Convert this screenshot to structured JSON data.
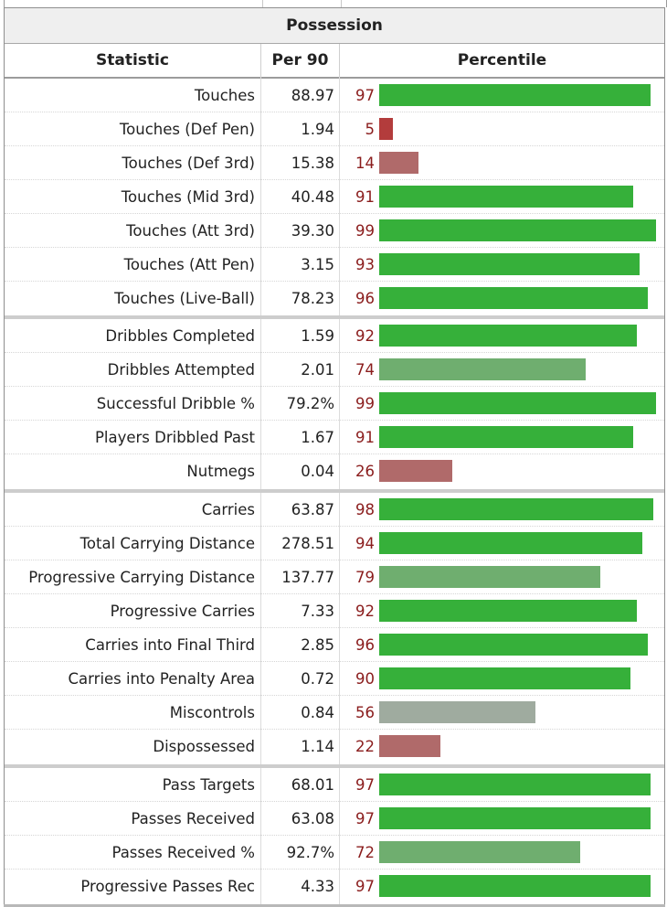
{
  "table": {
    "title": "Possession",
    "headers": {
      "statistic": "Statistic",
      "per90": "Per 90",
      "percentile": "Percentile"
    },
    "colors": {
      "high": "#36b03a",
      "mid_high": "#6fae6f",
      "neutral": "#9fab9f",
      "low": "#b06a6a",
      "very_low": "#b33c3c",
      "percentile_text": "#8a1c1c"
    },
    "groups": [
      {
        "rows": [
          {
            "statistic": "Touches",
            "per90": "88.97",
            "percentile": 97
          },
          {
            "statistic": "Touches (Def Pen)",
            "per90": "1.94",
            "percentile": 5
          },
          {
            "statistic": "Touches (Def 3rd)",
            "per90": "15.38",
            "percentile": 14
          },
          {
            "statistic": "Touches (Mid 3rd)",
            "per90": "40.48",
            "percentile": 91
          },
          {
            "statistic": "Touches (Att 3rd)",
            "per90": "39.30",
            "percentile": 99
          },
          {
            "statistic": "Touches (Att Pen)",
            "per90": "3.15",
            "percentile": 93
          },
          {
            "statistic": "Touches (Live-Ball)",
            "per90": "78.23",
            "percentile": 96
          }
        ]
      },
      {
        "rows": [
          {
            "statistic": "Dribbles Completed",
            "per90": "1.59",
            "percentile": 92
          },
          {
            "statistic": "Dribbles Attempted",
            "per90": "2.01",
            "percentile": 74
          },
          {
            "statistic": "Successful Dribble %",
            "per90": "79.2%",
            "percentile": 99
          },
          {
            "statistic": "Players Dribbled Past",
            "per90": "1.67",
            "percentile": 91
          },
          {
            "statistic": "Nutmegs",
            "per90": "0.04",
            "percentile": 26
          }
        ]
      },
      {
        "rows": [
          {
            "statistic": "Carries",
            "per90": "63.87",
            "percentile": 98
          },
          {
            "statistic": "Total Carrying Distance",
            "per90": "278.51",
            "percentile": 94
          },
          {
            "statistic": "Progressive Carrying Distance",
            "per90": "137.77",
            "percentile": 79
          },
          {
            "statistic": "Progressive Carries",
            "per90": "7.33",
            "percentile": 92
          },
          {
            "statistic": "Carries into Final Third",
            "per90": "2.85",
            "percentile": 96
          },
          {
            "statistic": "Carries into Penalty Area",
            "per90": "0.72",
            "percentile": 90
          },
          {
            "statistic": "Miscontrols",
            "per90": "0.84",
            "percentile": 56
          },
          {
            "statistic": "Dispossessed",
            "per90": "1.14",
            "percentile": 22
          }
        ]
      },
      {
        "rows": [
          {
            "statistic": "Pass Targets",
            "per90": "68.01",
            "percentile": 97
          },
          {
            "statistic": "Passes Received",
            "per90": "63.08",
            "percentile": 97
          },
          {
            "statistic": "Passes Received %",
            "per90": "92.7%",
            "percentile": 72
          },
          {
            "statistic": "Progressive Passes Rec",
            "per90": "4.33",
            "percentile": 97
          }
        ]
      }
    ]
  }
}
